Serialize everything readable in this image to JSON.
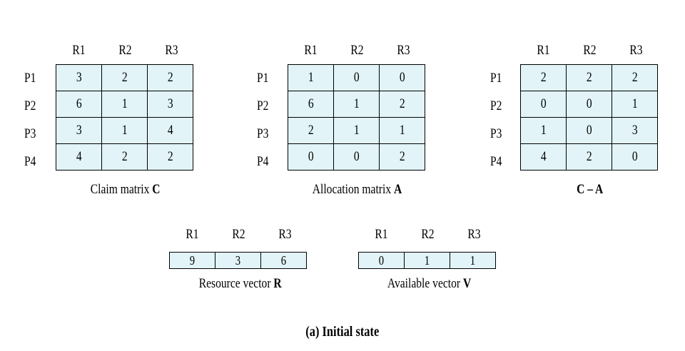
{
  "matrices": [
    {
      "columns": [
        "R1",
        "R2",
        "R3"
      ],
      "rows": [
        "P1",
        "P2",
        "P3",
        "P4"
      ],
      "values": [
        [
          "3",
          "2",
          "2"
        ],
        [
          "6",
          "1",
          "3"
        ],
        [
          "3",
          "1",
          "4"
        ],
        [
          "4",
          "2",
          "2"
        ]
      ],
      "caption_text": "Claim matrix ",
      "caption_bold": "C"
    },
    {
      "columns": [
        "R1",
        "R2",
        "R3"
      ],
      "rows": [
        "P1",
        "P2",
        "P3",
        "P4"
      ],
      "values": [
        [
          "1",
          "0",
          "0"
        ],
        [
          "6",
          "1",
          "2"
        ],
        [
          "2",
          "1",
          "1"
        ],
        [
          "0",
          "0",
          "2"
        ]
      ],
      "caption_text": "Allocation matrix ",
      "caption_bold": "A"
    },
    {
      "columns": [
        "R1",
        "R2",
        "R3"
      ],
      "rows": [
        "P1",
        "P2",
        "P3",
        "P4"
      ],
      "values": [
        [
          "2",
          "2",
          "2"
        ],
        [
          "0",
          "0",
          "1"
        ],
        [
          "1",
          "0",
          "3"
        ],
        [
          "4",
          "2",
          "0"
        ]
      ],
      "caption_text": "",
      "caption_bold": "C – A"
    }
  ],
  "vectors": [
    {
      "columns": [
        "R1",
        "R2",
        "R3"
      ],
      "values": [
        "9",
        "3",
        "6"
      ],
      "caption_text": "Resource vector ",
      "caption_bold": "R"
    },
    {
      "columns": [
        "R1",
        "R2",
        "R3"
      ],
      "values": [
        "0",
        "1",
        "1"
      ],
      "caption_text": "Available vector ",
      "caption_bold": "V"
    }
  ],
  "footer": "(a) Initial state",
  "colors": {
    "cell_fill": "#e2f4f7",
    "border": "#000000",
    "text": "#000000"
  }
}
